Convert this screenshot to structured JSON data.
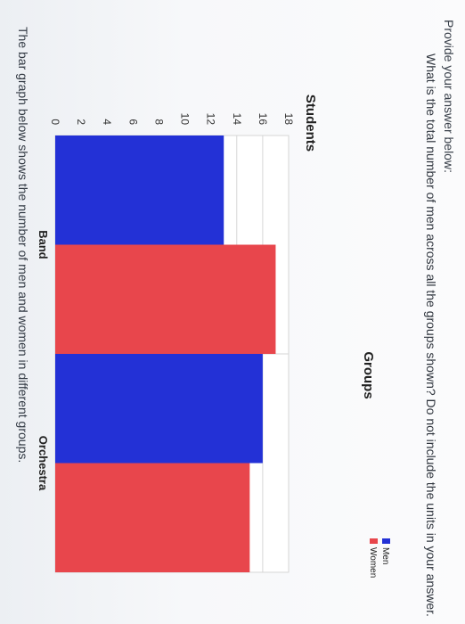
{
  "prompt": "The bar graph below shows the number of men and women in different groups.",
  "question": "What is the total number of men across all the groups shown? Do not include the units in your answer.",
  "answer_label": "Provide your answer below:",
  "chart_data": {
    "type": "bar",
    "categories": [
      "Band",
      "Orchestra"
    ],
    "series": [
      {
        "name": "Men",
        "values": [
          13,
          16
        ],
        "color": "#2331d6"
      },
      {
        "name": "Women",
        "values": [
          17,
          15
        ],
        "color": "#e8464c"
      }
    ],
    "ylabel": "Students",
    "xlabel": "Groups",
    "ylim": [
      0,
      18
    ],
    "yticks": [
      0,
      2,
      4,
      6,
      8,
      10,
      12,
      14,
      16,
      18
    ],
    "grid": true,
    "legend_position": "top-right"
  }
}
